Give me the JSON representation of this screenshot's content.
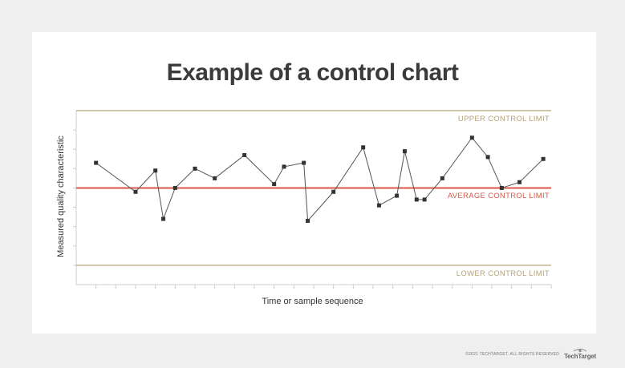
{
  "title": "Example of a control chart",
  "footer": {
    "copyright": "©2021 TECHTARGET. ALL RIGHTS RESERVED",
    "brand": "TechTarget"
  },
  "colors": {
    "background": "#efefef",
    "card": "#ffffff",
    "limit_line": "#b5a37a",
    "average_line": "#d9584a",
    "data_line": "#555555",
    "marker": "#333333",
    "axis": "#cccccc"
  },
  "chart_data": {
    "type": "line",
    "title": "Example of a control chart",
    "xlabel": "Time or sample sequence",
    "ylabel": "Measured quality characteristic",
    "x_ticks": 24,
    "y_ticks": 8,
    "xlim": [
      0,
      24
    ],
    "ylim": [
      0,
      9
    ],
    "control_limits": {
      "upper": {
        "label": "UPPER CONTROL LIMIT",
        "value": 9.0
      },
      "average": {
        "label": "AVERAGE CONTROL LIMIT",
        "value": 5.0
      },
      "lower": {
        "label": "LOWER CONTROL LIMIT",
        "value": 1.0
      }
    },
    "grid": false,
    "series": [
      {
        "x": [
          1,
          3,
          4,
          4.4,
          5,
          6,
          7,
          8.5,
          10,
          10.5,
          11.5,
          11.7,
          13,
          14.5,
          15.3,
          16.2,
          16.6,
          17.2,
          17.6,
          18.5,
          20,
          20.8,
          21.5,
          22.4,
          23.6
        ],
        "values": [
          6.3,
          4.8,
          5.9,
          3.4,
          5.0,
          6.0,
          5.5,
          6.7,
          5.2,
          6.1,
          6.3,
          3.3,
          4.8,
          7.1,
          4.1,
          4.6,
          6.9,
          4.4,
          4.4,
          5.5,
          7.6,
          6.6,
          5.0,
          5.3,
          6.5
        ]
      }
    ]
  }
}
